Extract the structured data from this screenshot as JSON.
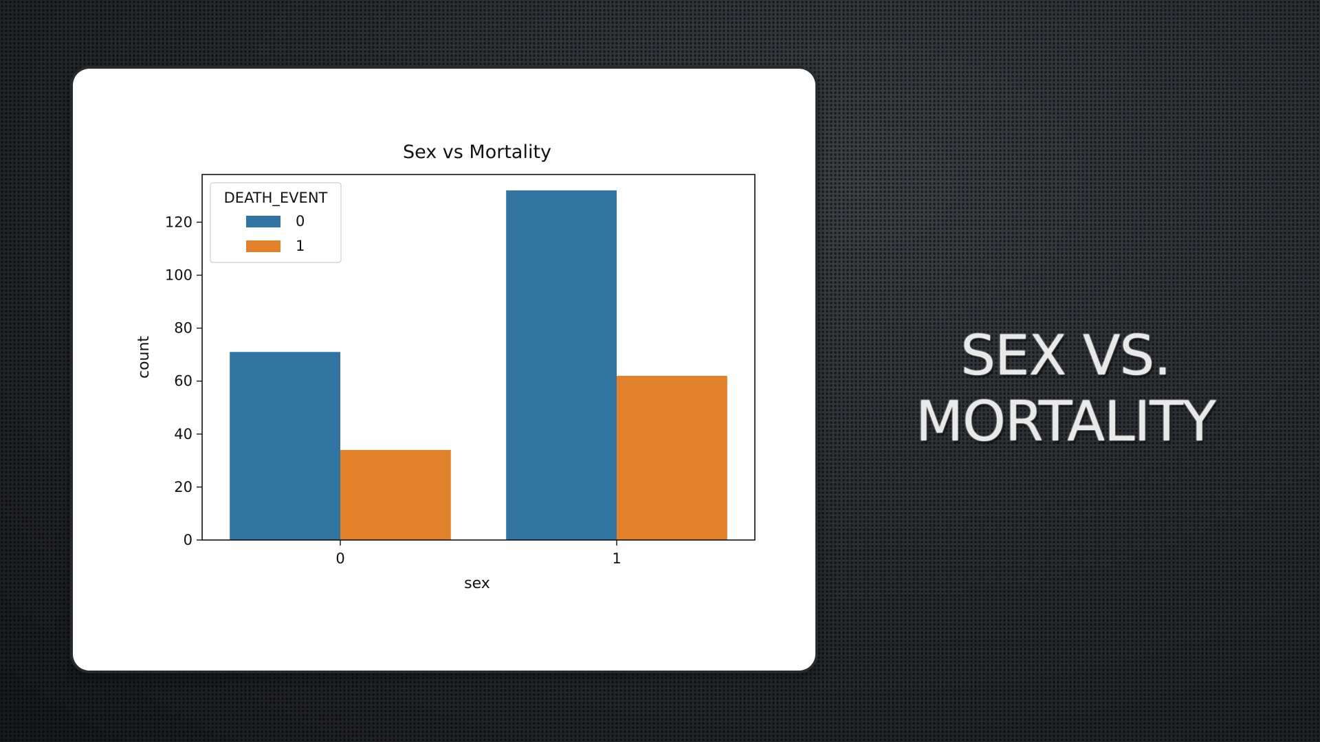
{
  "slide": {
    "title_line1": "SEX VS.",
    "title_line2": "MORTALITY"
  },
  "colors": {
    "series_0": "#3274a1",
    "series_1": "#e1812c"
  },
  "chart_data": {
    "type": "bar",
    "title": "Sex vs Mortality",
    "xlabel": "sex",
    "ylabel": "count",
    "categories": [
      "0",
      "1"
    ],
    "legend_title": "DEATH_EVENT",
    "legend_position": "top-left",
    "series": [
      {
        "name": "0",
        "values": [
          71,
          132
        ]
      },
      {
        "name": "1",
        "values": [
          34,
          62
        ]
      }
    ],
    "ylim": [
      0,
      138
    ],
    "yticks": [
      0,
      20,
      40,
      60,
      80,
      100,
      120
    ],
    "grid": false
  }
}
